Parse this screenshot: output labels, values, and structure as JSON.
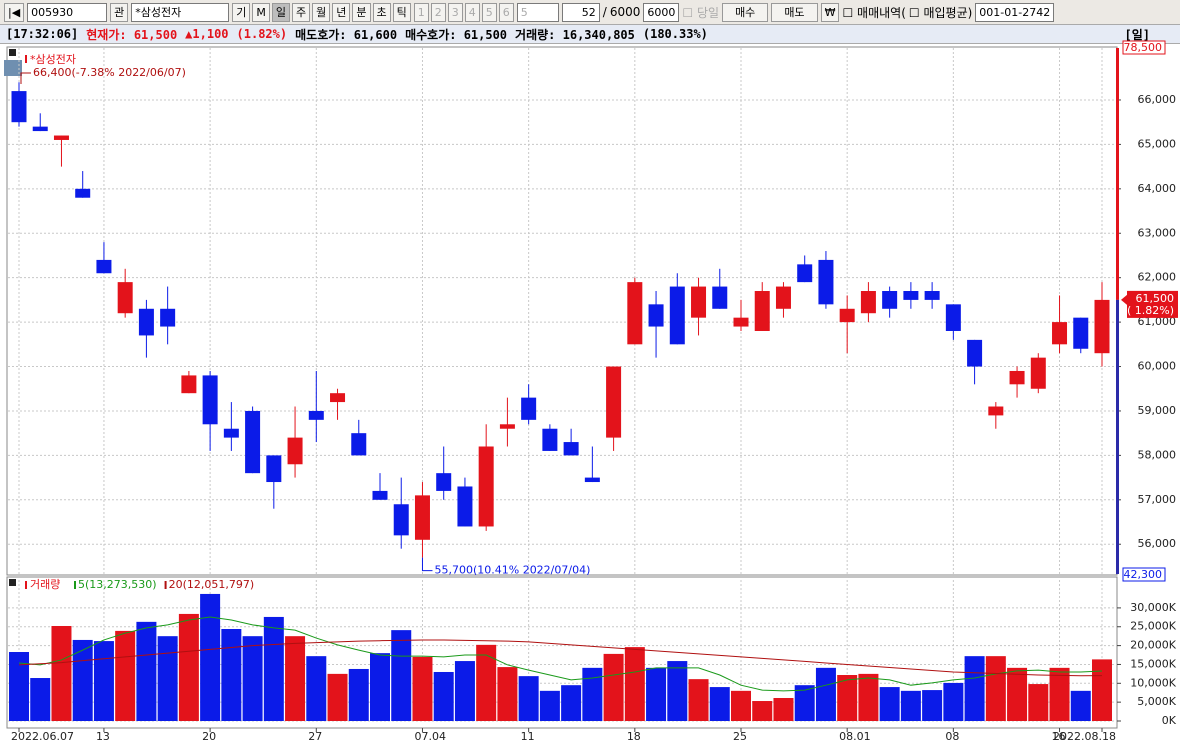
{
  "toolbar": {
    "code": "005930",
    "search": "관",
    "stock": "*삼성전자",
    "periods": [
      "기",
      "M",
      "일",
      "주",
      "월",
      "년",
      "분",
      "초",
      "틱"
    ],
    "numbers": [
      "1",
      "2",
      "3",
      "4",
      "5",
      "6"
    ],
    "interval": "5",
    "count": "52",
    "slash": "/",
    "total": "6000",
    "total_input": "6000",
    "today": "당일",
    "buy": "매수",
    "sell": "매도",
    "won": "₩",
    "history": "매매내역(",
    "average": "매입평균)",
    "account": "001-01-2742"
  },
  "status": {
    "time": "[17:32:06]",
    "price": "현재가: 61,500",
    "change": "▲1,100",
    "rate": "(1.82%)",
    "ask": "매도호가: 61,600",
    "bid": "매수호가: 61,500",
    "volume": "거래량: 16,340,805",
    "volume_rate": "(180.33%)",
    "period": "[일]"
  },
  "chart_data": [
    {
      "type": "candlestick",
      "up_color": "#e3131b",
      "down_color": "#0b1be8",
      "series": [
        {
          "name": "*삼성전자",
          "open": [
            66200,
            65400,
            65100,
            64000,
            62400,
            61200,
            61300,
            61300,
            59400,
            59800,
            58600,
            59000,
            58000,
            57800,
            59000,
            59200,
            58500,
            57200,
            56900,
            56100,
            57600,
            57300,
            56400,
            58600,
            59300,
            58600,
            58300,
            57500,
            58400,
            60500,
            61400,
            61800,
            61100,
            61800,
            60900,
            60800,
            61300,
            62300,
            62400,
            61000,
            61200,
            61700,
            61700,
            61700,
            61400,
            60600,
            58900,
            59600,
            59500,
            60500,
            61100,
            60300
          ],
          "high": [
            66400,
            65700,
            65200,
            64400,
            62800,
            62200,
            61500,
            61800,
            59900,
            59900,
            59200,
            59100,
            58000,
            59100,
            59900,
            59500,
            58800,
            57600,
            57500,
            57400,
            58200,
            57500,
            58700,
            59300,
            59600,
            58700,
            58600,
            58200,
            60000,
            62000,
            61700,
            62100,
            62000,
            62200,
            61500,
            61900,
            61900,
            62500,
            62600,
            61600,
            61900,
            61800,
            61900,
            61900,
            61400,
            60600,
            59200,
            60000,
            60300,
            61600,
            61100,
            61900
          ],
          "low": [
            65400,
            65300,
            64500,
            63800,
            62100,
            61100,
            60200,
            60500,
            59400,
            58100,
            58100,
            57600,
            56800,
            57500,
            58300,
            58800,
            58000,
            57000,
            55900,
            55700,
            57000,
            56400,
            56300,
            58200,
            58700,
            58100,
            58000,
            57400,
            58100,
            60500,
            60200,
            60500,
            60700,
            61300,
            60800,
            60800,
            61100,
            61900,
            61300,
            60300,
            61000,
            61100,
            61300,
            61300,
            60600,
            59600,
            58600,
            59300,
            59400,
            60300,
            60300,
            60000
          ],
          "close": [
            65500,
            65300,
            65200,
            63800,
            62100,
            61900,
            60700,
            60900,
            59800,
            58700,
            58400,
            57600,
            57400,
            58400,
            58800,
            59400,
            58000,
            57000,
            56200,
            57100,
            57200,
            56400,
            58200,
            58700,
            58800,
            58100,
            58000,
            57400,
            60000,
            61900,
            60900,
            60500,
            61800,
            61300,
            61100,
            61700,
            61800,
            61900,
            61400,
            61300,
            61700,
            61300,
            61500,
            61500,
            60800,
            60000,
            59100,
            59900,
            60200,
            61000,
            60400,
            61500
          ]
        }
      ],
      "ylim": [
        55330,
        67170
      ],
      "yticks": [
        {
          "value": 56000,
          "label": "56,000"
        },
        {
          "value": 57000,
          "label": "57,000"
        },
        {
          "value": 58000,
          "label": "58,000"
        },
        {
          "value": 59000,
          "label": "59,000"
        },
        {
          "value": 60000,
          "label": "60,000"
        },
        {
          "value": 61000,
          "label": "61,000"
        },
        {
          "value": 62000,
          "label": "62,000"
        },
        {
          "value": 63000,
          "label": "63,000"
        },
        {
          "value": 64000,
          "label": "64,000"
        },
        {
          "value": 65000,
          "label": "65,000"
        },
        {
          "value": 66000,
          "label": "66,000"
        }
      ],
      "grid": true,
      "annotations": [
        "66,400(-7.38% 2022/06/07)",
        "55,700(10.41% 2022/07/04)"
      ],
      "current_label": "61,500",
      "current_change": "( 1.82%)",
      "upper_limit": "78,500",
      "lower_limit": "42,300"
    },
    {
      "type": "bar",
      "title": "거래량",
      "categories": [
        "2022.06.07",
        null,
        null,
        null,
        "13",
        null,
        null,
        null,
        null,
        "20",
        null,
        null,
        null,
        null,
        "27",
        null,
        null,
        null,
        null,
        "07.04",
        null,
        null,
        null,
        null,
        "11",
        null,
        null,
        null,
        null,
        "18",
        null,
        null,
        null,
        null,
        "25",
        null,
        null,
        null,
        null,
        "08.01",
        null,
        null,
        null,
        null,
        "08",
        null,
        null,
        null,
        null,
        "16",
        null,
        "2022.08.18"
      ],
      "series": [
        {
          "name": "거래량",
          "values": [
            18300,
            11400,
            25200,
            21500,
            21200,
            23900,
            26300,
            22500,
            28400,
            33700,
            24400,
            22500,
            27600,
            22500,
            17200,
            12500,
            13800,
            18000,
            24100,
            17000,
            13000,
            15900,
            20200,
            14300,
            11900,
            8000,
            9500,
            14100,
            17800,
            19600,
            14100,
            15900,
            11100,
            9000,
            8000,
            5300,
            6100,
            9500,
            14100,
            12200,
            12500,
            9000,
            8000,
            8200,
            10100,
            17200,
            17200,
            14100,
            9800,
            14100,
            8000,
            16341
          ]
        },
        {
          "name": "5(13,273,530)",
          "color": "#1a9a1a",
          "values": [
            15400,
            14900,
            16200,
            18800,
            21500,
            23300,
            24700,
            25500,
            26800,
            27600,
            26800,
            25500,
            24700,
            24100,
            22000,
            20200,
            18800,
            17500,
            17200,
            17200,
            17000,
            17500,
            17500,
            14900,
            13500,
            12200,
            10900,
            11400,
            12200,
            13000,
            14100,
            14100,
            14100,
            12200,
            9500,
            8200,
            8000,
            8200,
            9500,
            10900,
            11400,
            10900,
            9500,
            10100,
            10900,
            11400,
            12500,
            13300,
            13500,
            13000,
            13000,
            13274
          ]
        },
        {
          "name": "20(12,051,797)",
          "color": "#b01010",
          "values": [
            14900,
            15200,
            15500,
            16000,
            16500,
            17000,
            17500,
            18000,
            18500,
            19000,
            19500,
            20000,
            20300,
            20600,
            20800,
            21000,
            21200,
            21300,
            21400,
            21500,
            21500,
            21400,
            21300,
            21200,
            21000,
            20600,
            20200,
            19800,
            19400,
            19000,
            18600,
            18200,
            17800,
            17400,
            17000,
            16600,
            16200,
            15800,
            15400,
            15000,
            14600,
            14200,
            13800,
            13400,
            13000,
            12800,
            12600,
            12400,
            12200,
            12100,
            12000,
            12052
          ]
        }
      ],
      "ylim": [
        0,
        37400
      ],
      "yticks": [
        {
          "value": 0,
          "label": "0K"
        },
        {
          "value": 5000,
          "label": "5,000K"
        },
        {
          "value": 10000,
          "label": "10,000K"
        },
        {
          "value": 15000,
          "label": "15,000K"
        },
        {
          "value": 20000,
          "label": "20,000K"
        },
        {
          "value": 25000,
          "label": "25,000K"
        },
        {
          "value": 30000,
          "label": "30,000K"
        }
      ],
      "grid": true
    }
  ]
}
